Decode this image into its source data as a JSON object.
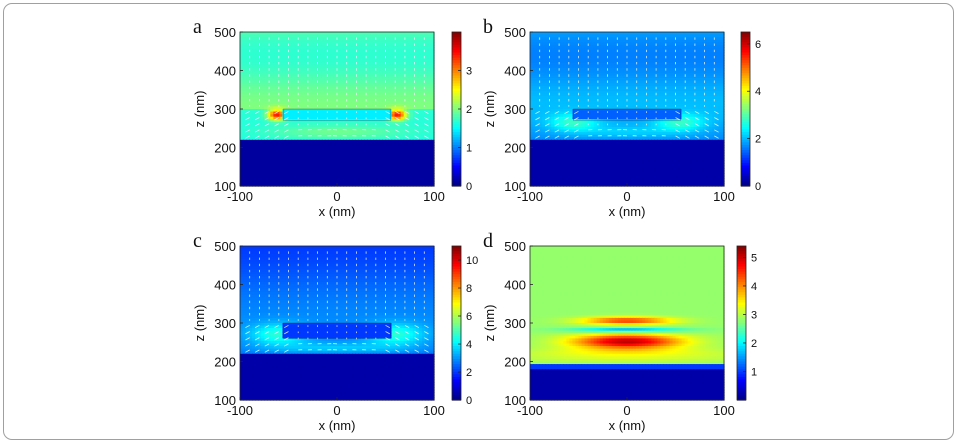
{
  "chart_data": [
    {
      "type": "heatmap",
      "panel_label": "a",
      "xlabel": "x (nm)",
      "ylabel": "z (nm)",
      "xlim": [
        -100,
        100
      ],
      "ylim": [
        100,
        500
      ],
      "xticks": [
        "-100",
        "0",
        "100"
      ],
      "yticks": [
        "100",
        "200",
        "300",
        "400",
        "500"
      ],
      "colorbar": {
        "range": [
          0,
          4
        ],
        "ticks": [
          "0",
          "1",
          "2",
          "3"
        ],
        "tick_values": [
          0,
          1,
          2,
          3
        ]
      },
      "vector_field": true,
      "features": {
        "particle_x": [
          -60,
          60
        ],
        "particle_z": [
          270,
          300
        ],
        "substrate_top_z": 225,
        "hotspots": "particle edges"
      }
    },
    {
      "type": "heatmap",
      "panel_label": "b",
      "xlabel": "x (nm)",
      "ylabel": "z (nm)",
      "xlim": [
        -100,
        100
      ],
      "ylim": [
        100,
        500
      ],
      "xticks": [
        "-100",
        "0",
        "100"
      ],
      "yticks": [
        "100",
        "200",
        "300",
        "400",
        "500"
      ],
      "colorbar": {
        "range": [
          0,
          6.5
        ],
        "ticks": [
          "0",
          "2",
          "4",
          "6"
        ],
        "tick_values": [
          0,
          2,
          4,
          6
        ]
      },
      "vector_field": true,
      "features": {
        "particle_x": [
          -60,
          60
        ],
        "particle_z": [
          270,
          300
        ],
        "substrate_top_z": 225
      }
    },
    {
      "type": "heatmap",
      "panel_label": "c",
      "xlabel": "x (nm)",
      "ylabel": "z (nm)",
      "xlim": [
        -100,
        100
      ],
      "ylim": [
        100,
        500
      ],
      "xticks": [
        "-100",
        "0",
        "100"
      ],
      "yticks": [
        "100",
        "200",
        "300",
        "400",
        "500"
      ],
      "colorbar": {
        "range": [
          0,
          11
        ],
        "ticks": [
          "0",
          "2",
          "4",
          "6",
          "8",
          "10"
        ],
        "tick_values": [
          0,
          2,
          4,
          6,
          8,
          10
        ]
      },
      "vector_field": true,
      "features": {
        "particle_x": [
          -60,
          60
        ],
        "particle_z": [
          260,
          300
        ],
        "substrate_top_z": 220
      }
    },
    {
      "type": "heatmap",
      "panel_label": "d",
      "xlabel": "x (nm)",
      "ylabel": "z (nm)",
      "xlim": [
        -100,
        100
      ],
      "ylim": [
        100,
        500
      ],
      "xticks": [
        "-100",
        "0",
        "100"
      ],
      "yticks": [
        "100",
        "200",
        "300",
        "400",
        "500"
      ],
      "colorbar": {
        "range": [
          0,
          5.4
        ],
        "ticks": [
          "1",
          "2",
          "3",
          "4",
          "5"
        ],
        "tick_values": [
          1,
          2,
          3,
          4,
          5
        ]
      },
      "vector_field": false,
      "features": {
        "upper_lobe_z": 305,
        "lower_lobe_z": 250,
        "substrate_top_z": 190
      }
    }
  ],
  "colors": {
    "colormap": [
      "#00008f",
      "#0000ff",
      "#0080ff",
      "#00ffff",
      "#80ff80",
      "#ffff00",
      "#ff8000",
      "#ff0000",
      "#800000"
    ],
    "frame_border": "#a0a0a0",
    "vector_arrows": "#ffffff"
  }
}
